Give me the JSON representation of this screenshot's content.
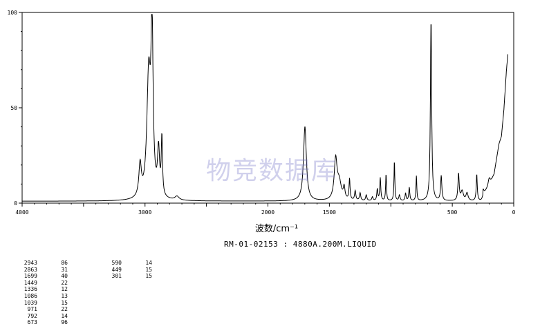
{
  "chart_data": {
    "type": "line",
    "xlabel": "波数/cm⁻¹",
    "title": "RM-01-02153 : 4880A.200M.LIQUID",
    "xlim": [
      4000,
      0
    ],
    "ylim": [
      0,
      100
    ],
    "x_ticks": [
      4000,
      3000,
      2000,
      1500,
      500,
      0
    ],
    "y_ticks": [
      0,
      50,
      100
    ],
    "grid": false,
    "line_color": "#000000",
    "baseline": 1,
    "peaks": [
      {
        "x": 3040,
        "y": 18,
        "w": 12
      },
      {
        "x": 2970,
        "y": 65,
        "w": 18
      },
      {
        "x": 2943,
        "y": 86,
        "w": 10
      },
      {
        "x": 2890,
        "y": 25,
        "w": 10
      },
      {
        "x": 2863,
        "y": 31,
        "w": 6
      },
      {
        "x": 2740,
        "y": 3,
        "w": 20
      },
      {
        "x": 1699,
        "y": 40,
        "w": 14
      },
      {
        "x": 1449,
        "y": 22,
        "w": 14
      },
      {
        "x": 1420,
        "y": 10,
        "w": 20
      },
      {
        "x": 1380,
        "y": 7,
        "w": 8
      },
      {
        "x": 1336,
        "y": 12,
        "w": 5
      },
      {
        "x": 1290,
        "y": 6,
        "w": 6
      },
      {
        "x": 1250,
        "y": 5,
        "w": 6
      },
      {
        "x": 1200,
        "y": 4,
        "w": 6
      },
      {
        "x": 1150,
        "y": 3,
        "w": 6
      },
      {
        "x": 1110,
        "y": 7,
        "w": 5
      },
      {
        "x": 1086,
        "y": 13,
        "w": 5
      },
      {
        "x": 1039,
        "y": 15,
        "w": 4
      },
      {
        "x": 971,
        "y": 22,
        "w": 4
      },
      {
        "x": 930,
        "y": 4,
        "w": 6
      },
      {
        "x": 880,
        "y": 5,
        "w": 5
      },
      {
        "x": 850,
        "y": 8,
        "w": 5
      },
      {
        "x": 792,
        "y": 14,
        "w": 4
      },
      {
        "x": 673,
        "y": 96,
        "w": 6
      },
      {
        "x": 590,
        "y": 14,
        "w": 6
      },
      {
        "x": 449,
        "y": 15,
        "w": 6
      },
      {
        "x": 420,
        "y": 6,
        "w": 12
      },
      {
        "x": 380,
        "y": 5,
        "w": 10
      },
      {
        "x": 301,
        "y": 15,
        "w": 5
      },
      {
        "x": 250,
        "y": 4,
        "w": 8
      },
      {
        "x": 200,
        "y": 5,
        "w": 10
      }
    ],
    "rise": [
      {
        "x": 250,
        "y": 3
      },
      {
        "x": 200,
        "y": 8
      },
      {
        "x": 160,
        "y": 14
      },
      {
        "x": 140,
        "y": 22
      },
      {
        "x": 120,
        "y": 30
      },
      {
        "x": 100,
        "y": 34
      },
      {
        "x": 80,
        "y": 48
      },
      {
        "x": 60,
        "y": 68
      },
      {
        "x": 48,
        "y": 77
      }
    ],
    "peak_table": [
      [
        [
          "2943",
          "86"
        ],
        [
          "2863",
          "31"
        ],
        [
          "1699",
          "40"
        ],
        [
          "1449",
          "22"
        ],
        [
          "1336",
          "12"
        ],
        [
          "1086",
          "13"
        ],
        [
          "1039",
          "15"
        ],
        [
          "971",
          "22"
        ],
        [
          "792",
          "14"
        ],
        [
          "673",
          "96"
        ]
      ],
      [
        [
          "590",
          "14"
        ],
        [
          "449",
          "15"
        ],
        [
          "301",
          "15"
        ]
      ]
    ]
  },
  "watermark": "物竞数据库"
}
